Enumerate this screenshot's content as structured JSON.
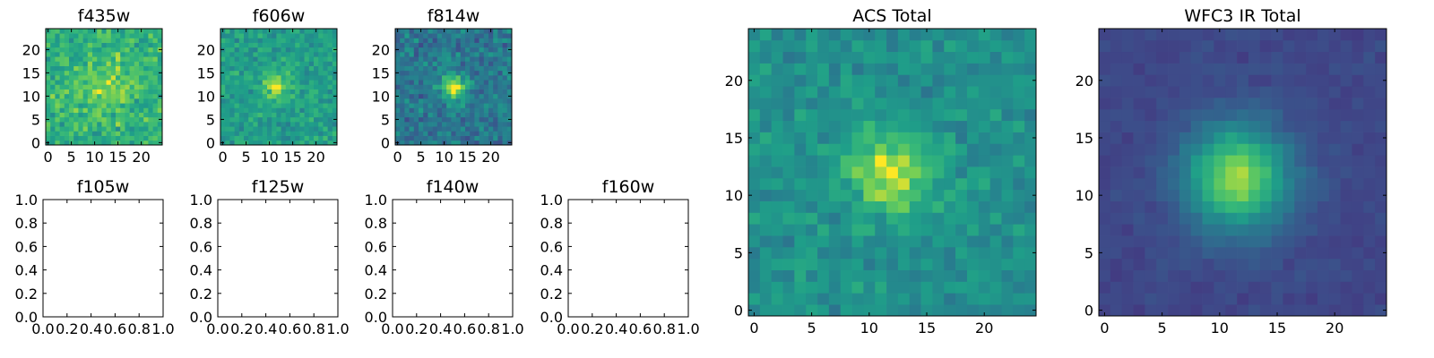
{
  "chart_data": [
    {
      "id": "p-f435w",
      "type": "heatmap",
      "title": "f435w",
      "xlim": [
        -0.5,
        24.5
      ],
      "ylim": [
        -0.5,
        24.5
      ],
      "xticks": [
        0,
        5,
        10,
        15,
        20
      ],
      "yticks": [
        0,
        5,
        10,
        15,
        20
      ],
      "xticklabels": [
        "0",
        "5",
        "10",
        "15",
        "20"
      ],
      "yticklabels": [
        "0",
        "5",
        "10",
        "15",
        "20"
      ],
      "colormap": "viridis",
      "grid": false,
      "shape": [
        25,
        25
      ],
      "source": {
        "center": [
          12,
          12
        ],
        "sigma": 4.0,
        "amplitude": 0.15,
        "baseline": 0.72,
        "noise": 0.2,
        "seed": 11
      }
    },
    {
      "id": "p-f606w",
      "type": "heatmap",
      "title": "f606w",
      "xlim": [
        -0.5,
        24.5
      ],
      "ylim": [
        -0.5,
        24.5
      ],
      "xticks": [
        0,
        5,
        10,
        15,
        20
      ],
      "yticks": [
        0,
        5,
        10,
        15,
        20
      ],
      "xticklabels": [
        "0",
        "5",
        "10",
        "15",
        "20"
      ],
      "yticklabels": [
        "0",
        "5",
        "10",
        "15",
        "20"
      ],
      "colormap": "viridis",
      "grid": false,
      "shape": [
        25,
        25
      ],
      "source": {
        "center": [
          11.5,
          12.5
        ],
        "sigma": 2.2,
        "amplitude": 0.3,
        "baseline": 0.63,
        "noise": 0.17,
        "seed": 22
      }
    },
    {
      "id": "p-f814w",
      "type": "heatmap",
      "title": "f814w",
      "xlim": [
        -0.5,
        24.5
      ],
      "ylim": [
        -0.5,
        24.5
      ],
      "xticks": [
        0,
        5,
        10,
        15,
        20
      ],
      "yticks": [
        0,
        5,
        10,
        15,
        20
      ],
      "xticklabels": [
        "0",
        "5",
        "10",
        "15",
        "20"
      ],
      "yticklabels": [
        "0",
        "5",
        "10",
        "15",
        "20"
      ],
      "colormap": "viridis",
      "grid": false,
      "shape": [
        25,
        25
      ],
      "source": {
        "center": [
          12,
          12
        ],
        "sigma": 1.9,
        "amplitude": 0.55,
        "baseline": 0.45,
        "noise": 0.2,
        "seed": 33
      }
    },
    {
      "id": "p-f105w",
      "type": "empty",
      "title": "f105w",
      "xlim": [
        0,
        1
      ],
      "ylim": [
        0,
        1
      ],
      "xticks": [
        0,
        0.2,
        0.4,
        0.6,
        0.8,
        1.0
      ],
      "yticks": [
        0,
        0.2,
        0.4,
        0.6,
        0.8,
        1.0
      ],
      "xticklabels": [
        "0.0",
        "0.2",
        "0.4",
        "0.6",
        "0.8",
        "1.0"
      ],
      "yticklabels": [
        "0.0",
        "0.2",
        "0.4",
        "0.6",
        "0.8",
        "1.0"
      ]
    },
    {
      "id": "p-f125w",
      "type": "empty",
      "title": "f125w",
      "xlim": [
        0,
        1
      ],
      "ylim": [
        0,
        1
      ],
      "xticks": [
        0,
        0.2,
        0.4,
        0.6,
        0.8,
        1.0
      ],
      "yticks": [
        0,
        0.2,
        0.4,
        0.6,
        0.8,
        1.0
      ],
      "xticklabels": [
        "0.0",
        "0.2",
        "0.4",
        "0.6",
        "0.8",
        "1.0"
      ],
      "yticklabels": [
        "0.0",
        "0.2",
        "0.4",
        "0.6",
        "0.8",
        "1.0"
      ]
    },
    {
      "id": "p-f140w",
      "type": "empty",
      "title": "f140w",
      "xlim": [
        0,
        1
      ],
      "ylim": [
        0,
        1
      ],
      "xticks": [
        0,
        0.2,
        0.4,
        0.6,
        0.8,
        1.0
      ],
      "yticks": [
        0,
        0.2,
        0.4,
        0.6,
        0.8,
        1.0
      ],
      "xticklabels": [
        "0.0",
        "0.2",
        "0.4",
        "0.6",
        "0.8",
        "1.0"
      ],
      "yticklabels": [
        "0.0",
        "0.2",
        "0.4",
        "0.6",
        "0.8",
        "1.0"
      ]
    },
    {
      "id": "p-f160w",
      "type": "empty",
      "title": "f160w",
      "xlim": [
        0,
        1
      ],
      "ylim": [
        0,
        1
      ],
      "xticks": [
        0,
        0.2,
        0.4,
        0.6,
        0.8,
        1.0
      ],
      "yticks": [
        0,
        0.2,
        0.4,
        0.6,
        0.8,
        1.0
      ],
      "xticklabels": [
        "0.0",
        "0.2",
        "0.4",
        "0.6",
        "0.8",
        "1.0"
      ],
      "yticklabels": [
        "0.0",
        "0.2",
        "0.4",
        "0.6",
        "0.8",
        "1.0"
      ]
    },
    {
      "id": "p-acs-total",
      "type": "heatmap",
      "title": "ACS Total",
      "xlim": [
        -0.5,
        24.5
      ],
      "ylim": [
        -0.5,
        24.5
      ],
      "xticks": [
        0,
        5,
        10,
        15,
        20
      ],
      "yticks": [
        0,
        5,
        10,
        15,
        20
      ],
      "xticklabels": [
        "0",
        "5",
        "10",
        "15",
        "20"
      ],
      "yticklabels": [
        "0",
        "5",
        "10",
        "15",
        "20"
      ],
      "colormap": "viridis",
      "grid": false,
      "shape": [
        25,
        25
      ],
      "source": {
        "center": [
          12,
          12
        ],
        "sigma": 2.6,
        "amplitude": 0.4,
        "baseline": 0.56,
        "noise": 0.14,
        "seed": 44
      }
    },
    {
      "id": "p-wfc3-ir-total",
      "type": "heatmap",
      "title": "WFC3 IR Total",
      "xlim": [
        -0.5,
        24.5
      ],
      "ylim": [
        -0.5,
        24.5
      ],
      "xticks": [
        0,
        5,
        10,
        15,
        20
      ],
      "yticks": [
        0,
        5,
        10,
        15,
        20
      ],
      "xticklabels": [
        "0",
        "5",
        "10",
        "15",
        "20"
      ],
      "yticklabels": [
        "0",
        "5",
        "10",
        "15",
        "20"
      ],
      "colormap": "viridis",
      "grid": false,
      "shape": [
        25,
        25
      ],
      "source": {
        "center": [
          11.5,
          11.5
        ],
        "sigma": 3.2,
        "amplitude": 0.68,
        "baseline": 0.24,
        "noise": 0.05,
        "seed": 55
      }
    }
  ]
}
